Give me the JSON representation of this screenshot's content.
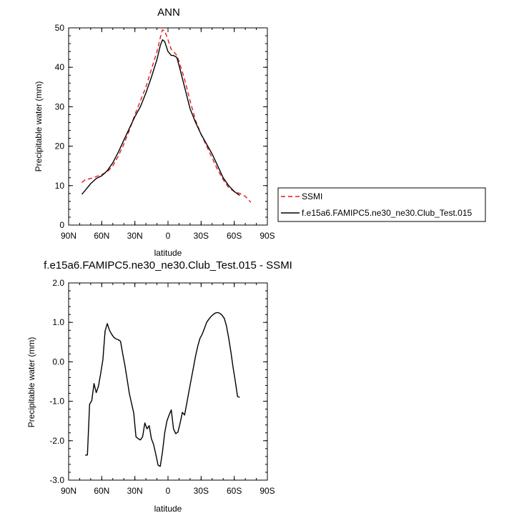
{
  "chart_data": [
    {
      "type": "line",
      "title": "ANN",
      "xlabel": "latitude",
      "ylabel": "Precipitable water (mm)",
      "xlim": [
        90,
        -90
      ],
      "ylim": [
        0,
        50
      ],
      "x_tick_values": [
        90,
        60,
        30,
        0,
        -30,
        -60,
        -90
      ],
      "x_tick_labels": [
        "90N",
        "60N",
        "30N",
        "0",
        "30S",
        "60S",
        "90S"
      ],
      "y_tick_labels": [
        "0",
        "10",
        "20",
        "30",
        "40",
        "50"
      ],
      "y_tick_values": [
        0,
        10,
        20,
        30,
        40,
        50
      ],
      "legend_position": "right",
      "series": [
        {
          "name": "SSMI",
          "color": "#e8161a",
          "dash": "dashed",
          "x": [
            78,
            75,
            70,
            65,
            60,
            55,
            50,
            45,
            40,
            35,
            30,
            25,
            20,
            15,
            10,
            7,
            5,
            3,
            0,
            -3,
            -5,
            -8,
            -10,
            -15,
            -20,
            -25,
            -30,
            -35,
            -40,
            -45,
            -50,
            -55,
            -60,
            -65,
            -70,
            -75
          ],
          "y": [
            10.8,
            11.5,
            11.8,
            12.3,
            12.8,
            13.5,
            15.0,
            17.5,
            20.5,
            24.0,
            28.0,
            31.5,
            35.0,
            39.5,
            44.0,
            47.5,
            49.5,
            49.3,
            47.0,
            44.5,
            44.0,
            43.0,
            41.5,
            37.0,
            31.5,
            26.5,
            23.0,
            20.0,
            17.0,
            14.0,
            11.5,
            9.5,
            8.5,
            8.0,
            7.3,
            5.8
          ]
        },
        {
          "name": "f.e15a6.FAMIPC5.ne30_ne30.Club_Test.015",
          "color": "#000000",
          "dash": "solid",
          "x": [
            78,
            75,
            70,
            65,
            60,
            55,
            50,
            45,
            40,
            35,
            30,
            25,
            20,
            15,
            10,
            7,
            5,
            3,
            0,
            -3,
            -5,
            -8,
            -10,
            -15,
            -20,
            -25,
            -30,
            -35,
            -40,
            -45,
            -50,
            -55,
            -60,
            -65
          ],
          "y": [
            7.8,
            8.8,
            10.5,
            11.8,
            12.5,
            13.8,
            15.8,
            18.5,
            21.5,
            24.5,
            27.5,
            30.0,
            33.5,
            37.5,
            42.0,
            45.5,
            47.0,
            46.5,
            44.0,
            43.0,
            43.0,
            42.5,
            40.5,
            35.0,
            29.5,
            26.0,
            23.0,
            20.5,
            18.0,
            15.0,
            12.0,
            10.0,
            8.5,
            7.5
          ]
        }
      ]
    },
    {
      "type": "line",
      "title": "f.e15a6.FAMIPC5.ne30_ne30.Club_Test.015 - SSMI",
      "xlabel": "latitude",
      "ylabel": "Precipitable water (mm)",
      "xlim": [
        90,
        -90
      ],
      "ylim": [
        -3.0,
        2.0
      ],
      "x_tick_values": [
        90,
        60,
        30,
        0,
        -30,
        -60,
        -90
      ],
      "x_tick_labels": [
        "90N",
        "60N",
        "30N",
        "0",
        "30S",
        "60S",
        "90S"
      ],
      "y_tick_values": [
        -3,
        -2,
        -1,
        0,
        1,
        2
      ],
      "y_tick_labels": [
        "-3.0",
        "-2.0",
        "-1.0",
        "0.0",
        "1.0",
        "2.0"
      ],
      "series": [
        {
          "color": "#000000",
          "dash": "solid",
          "x": [
            75,
            73,
            71,
            69,
            67,
            65,
            63,
            61,
            59,
            57,
            55,
            53,
            51,
            49,
            47,
            45,
            43,
            41,
            39,
            37,
            35,
            33,
            31,
            29,
            27,
            25,
            23,
            21,
            19,
            17,
            15,
            13,
            11,
            9,
            7,
            5,
            3,
            1,
            -1,
            -3,
            -5,
            -7,
            -9,
            -11,
            -13,
            -15,
            -17,
            -19,
            -21,
            -23,
            -25,
            -27,
            -29,
            -31,
            -33,
            -35,
            -37,
            -39,
            -41,
            -43,
            -45,
            -47,
            -49,
            -51,
            -53,
            -55,
            -57,
            -59,
            -61,
            -63,
            -65
          ],
          "y": [
            -2.37,
            -2.36,
            -1.08,
            -0.98,
            -0.55,
            -0.78,
            -0.62,
            -0.3,
            0.05,
            0.78,
            0.97,
            0.8,
            0.7,
            0.62,
            0.58,
            0.56,
            0.52,
            0.2,
            -0.1,
            -0.45,
            -0.8,
            -1.05,
            -1.3,
            -1.9,
            -1.95,
            -1.98,
            -1.9,
            -1.55,
            -1.7,
            -1.62,
            -1.95,
            -2.1,
            -2.35,
            -2.62,
            -2.65,
            -2.28,
            -1.8,
            -1.5,
            -1.35,
            -1.22,
            -1.7,
            -1.82,
            -1.78,
            -1.55,
            -1.28,
            -1.35,
            -1.05,
            -0.75,
            -0.45,
            -0.15,
            0.15,
            0.4,
            0.6,
            0.7,
            0.85,
            1.0,
            1.08,
            1.15,
            1.2,
            1.24,
            1.25,
            1.23,
            1.18,
            1.1,
            0.9,
            0.6,
            0.25,
            -0.15,
            -0.5,
            -0.88,
            -0.9
          ]
        }
      ]
    }
  ]
}
